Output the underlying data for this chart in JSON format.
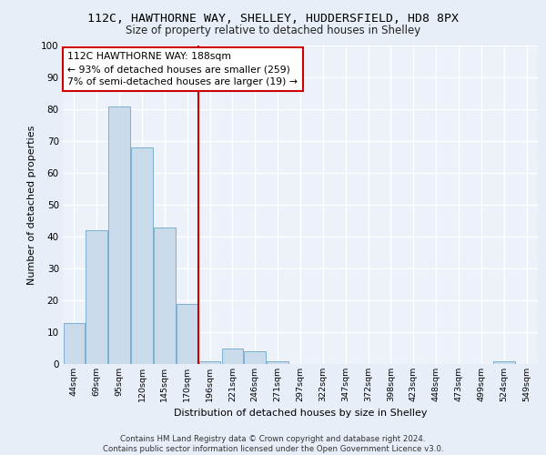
{
  "title": "112C, HAWTHORNE WAY, SHELLEY, HUDDERSFIELD, HD8 8PX",
  "subtitle": "Size of property relative to detached houses in Shelley",
  "xlabel": "Distribution of detached houses by size in Shelley",
  "ylabel": "Number of detached properties",
  "bin_labels": [
    "44sqm",
    "69sqm",
    "95sqm",
    "120sqm",
    "145sqm",
    "170sqm",
    "196sqm",
    "221sqm",
    "246sqm",
    "271sqm",
    "297sqm",
    "322sqm",
    "347sqm",
    "372sqm",
    "398sqm",
    "423sqm",
    "448sqm",
    "473sqm",
    "499sqm",
    "524sqm",
    "549sqm"
  ],
  "bar_values": [
    13,
    42,
    81,
    68,
    43,
    19,
    1,
    5,
    4,
    1,
    0,
    0,
    0,
    0,
    0,
    0,
    0,
    0,
    0,
    1,
    0
  ],
  "bar_color": "#c9daea",
  "bar_edgecolor": "#7ab0d0",
  "vline_color": "#cc0000",
  "annotation_text": "112C HAWTHORNE WAY: 188sqm\n← 93% of detached houses are smaller (259)\n7% of semi-detached houses are larger (19) →",
  "annotation_box_edgecolor": "#cc0000",
  "ylim": [
    0,
    100
  ],
  "yticks": [
    0,
    10,
    20,
    30,
    40,
    50,
    60,
    70,
    80,
    90,
    100
  ],
  "bg_color": "#e8eef8",
  "plot_bg_color": "#edf2fa",
  "footer": "Contains HM Land Registry data © Crown copyright and database right 2024.\nContains public sector information licensed under the Open Government Licence v3.0."
}
